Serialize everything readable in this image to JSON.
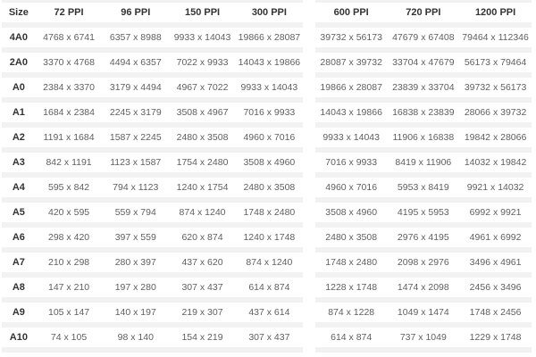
{
  "theme": {
    "stripe": "#f2f2f2",
    "row_bg": "#ffffff",
    "header_text": "#333333",
    "cell_text": "#5f5f5f"
  },
  "chart_data": {
    "type": "table",
    "description": "A-series paper sizes converted to pixel dimensions at different PPI resolutions",
    "layout": "two side-by-side striped tables; left table holds Size + 72/96/150/300 PPI, right table holds 600/720/1200 PPI",
    "columns": [
      "Size",
      "72 PPI",
      "96 PPI",
      "150 PPI",
      "300 PPI",
      "600 PPI",
      "720 PPI",
      "1200 PPI"
    ],
    "rows": [
      [
        "4A0",
        "4768 x 6741",
        "6357 x 8988",
        "9933 x 14043",
        "19866 x 28087",
        "39732 x 56173",
        "47679 x 67408",
        "79464 x 112346"
      ],
      [
        "2A0",
        "3370 x 4768",
        "4494 x 6357",
        "7022 x 9933",
        "14043 x 19866",
        "28087 x 39732",
        "33704 x 47679",
        "56173 x 79464"
      ],
      [
        "A0",
        "2384 x 3370",
        "3179 x 4494",
        "4967 x 7022",
        "9933 x 14043",
        "19866 x 28087",
        "23839 x 33704",
        "39732 x 56173"
      ],
      [
        "A1",
        "1684 x 2384",
        "2245 x 3179",
        "3508 x 4967",
        "7016 x 9933",
        "14043 x 19866",
        "16838 x 23839",
        "28066 x 39732"
      ],
      [
        "A2",
        "1191 x 1684",
        "1587 x 2245",
        "2480 x 3508",
        "4960 x 7016",
        "9933 x 14043",
        "11906 x 16838",
        "19842 x 28066"
      ],
      [
        "A3",
        "842 x 1191",
        "1123 x 1587",
        "1754 x 2480",
        "3508 x 4960",
        "7016 x 9933",
        "8419 x 11906",
        "14032 x 19842"
      ],
      [
        "A4",
        "595 x 842",
        "794 x 1123",
        "1240 x 1754",
        "2480 x 3508",
        "4960 x 7016",
        "5953 x 8419",
        "9921 x 14032"
      ],
      [
        "A5",
        "420 x 595",
        "559 x 794",
        "874 x 1240",
        "1748 x 2480",
        "3508 x 4960",
        "4195 x 5953",
        "6992 x 9921"
      ],
      [
        "A6",
        "298 x 420",
        "397 x 559",
        "620 x 874",
        "1240 x 1748",
        "2480 x 3508",
        "2976 x 4195",
        "4961 x 6992"
      ],
      [
        "A7",
        "210 x 298",
        "280 x 397",
        "437 x 620",
        "874 x 1240",
        "1748 x 2480",
        "2098 x 2976",
        "3496 x 4961"
      ],
      [
        "A8",
        "147 x 210",
        "197 x 280",
        "307 x 437",
        "614 x 874",
        "1228 x 1748",
        "1474 x 2098",
        "2456 x 3496"
      ],
      [
        "A9",
        "105 x 147",
        "140 x 197",
        "219 x 307",
        "437 x 614",
        "874 x 1228",
        "1049 x 1474",
        "1748 x 2456"
      ],
      [
        "A10",
        "74 x 105",
        "98 x 140",
        "154 x 219",
        "307 x 437",
        "614 x 874",
        "737 x 1049",
        "1229 x 1748"
      ]
    ]
  }
}
